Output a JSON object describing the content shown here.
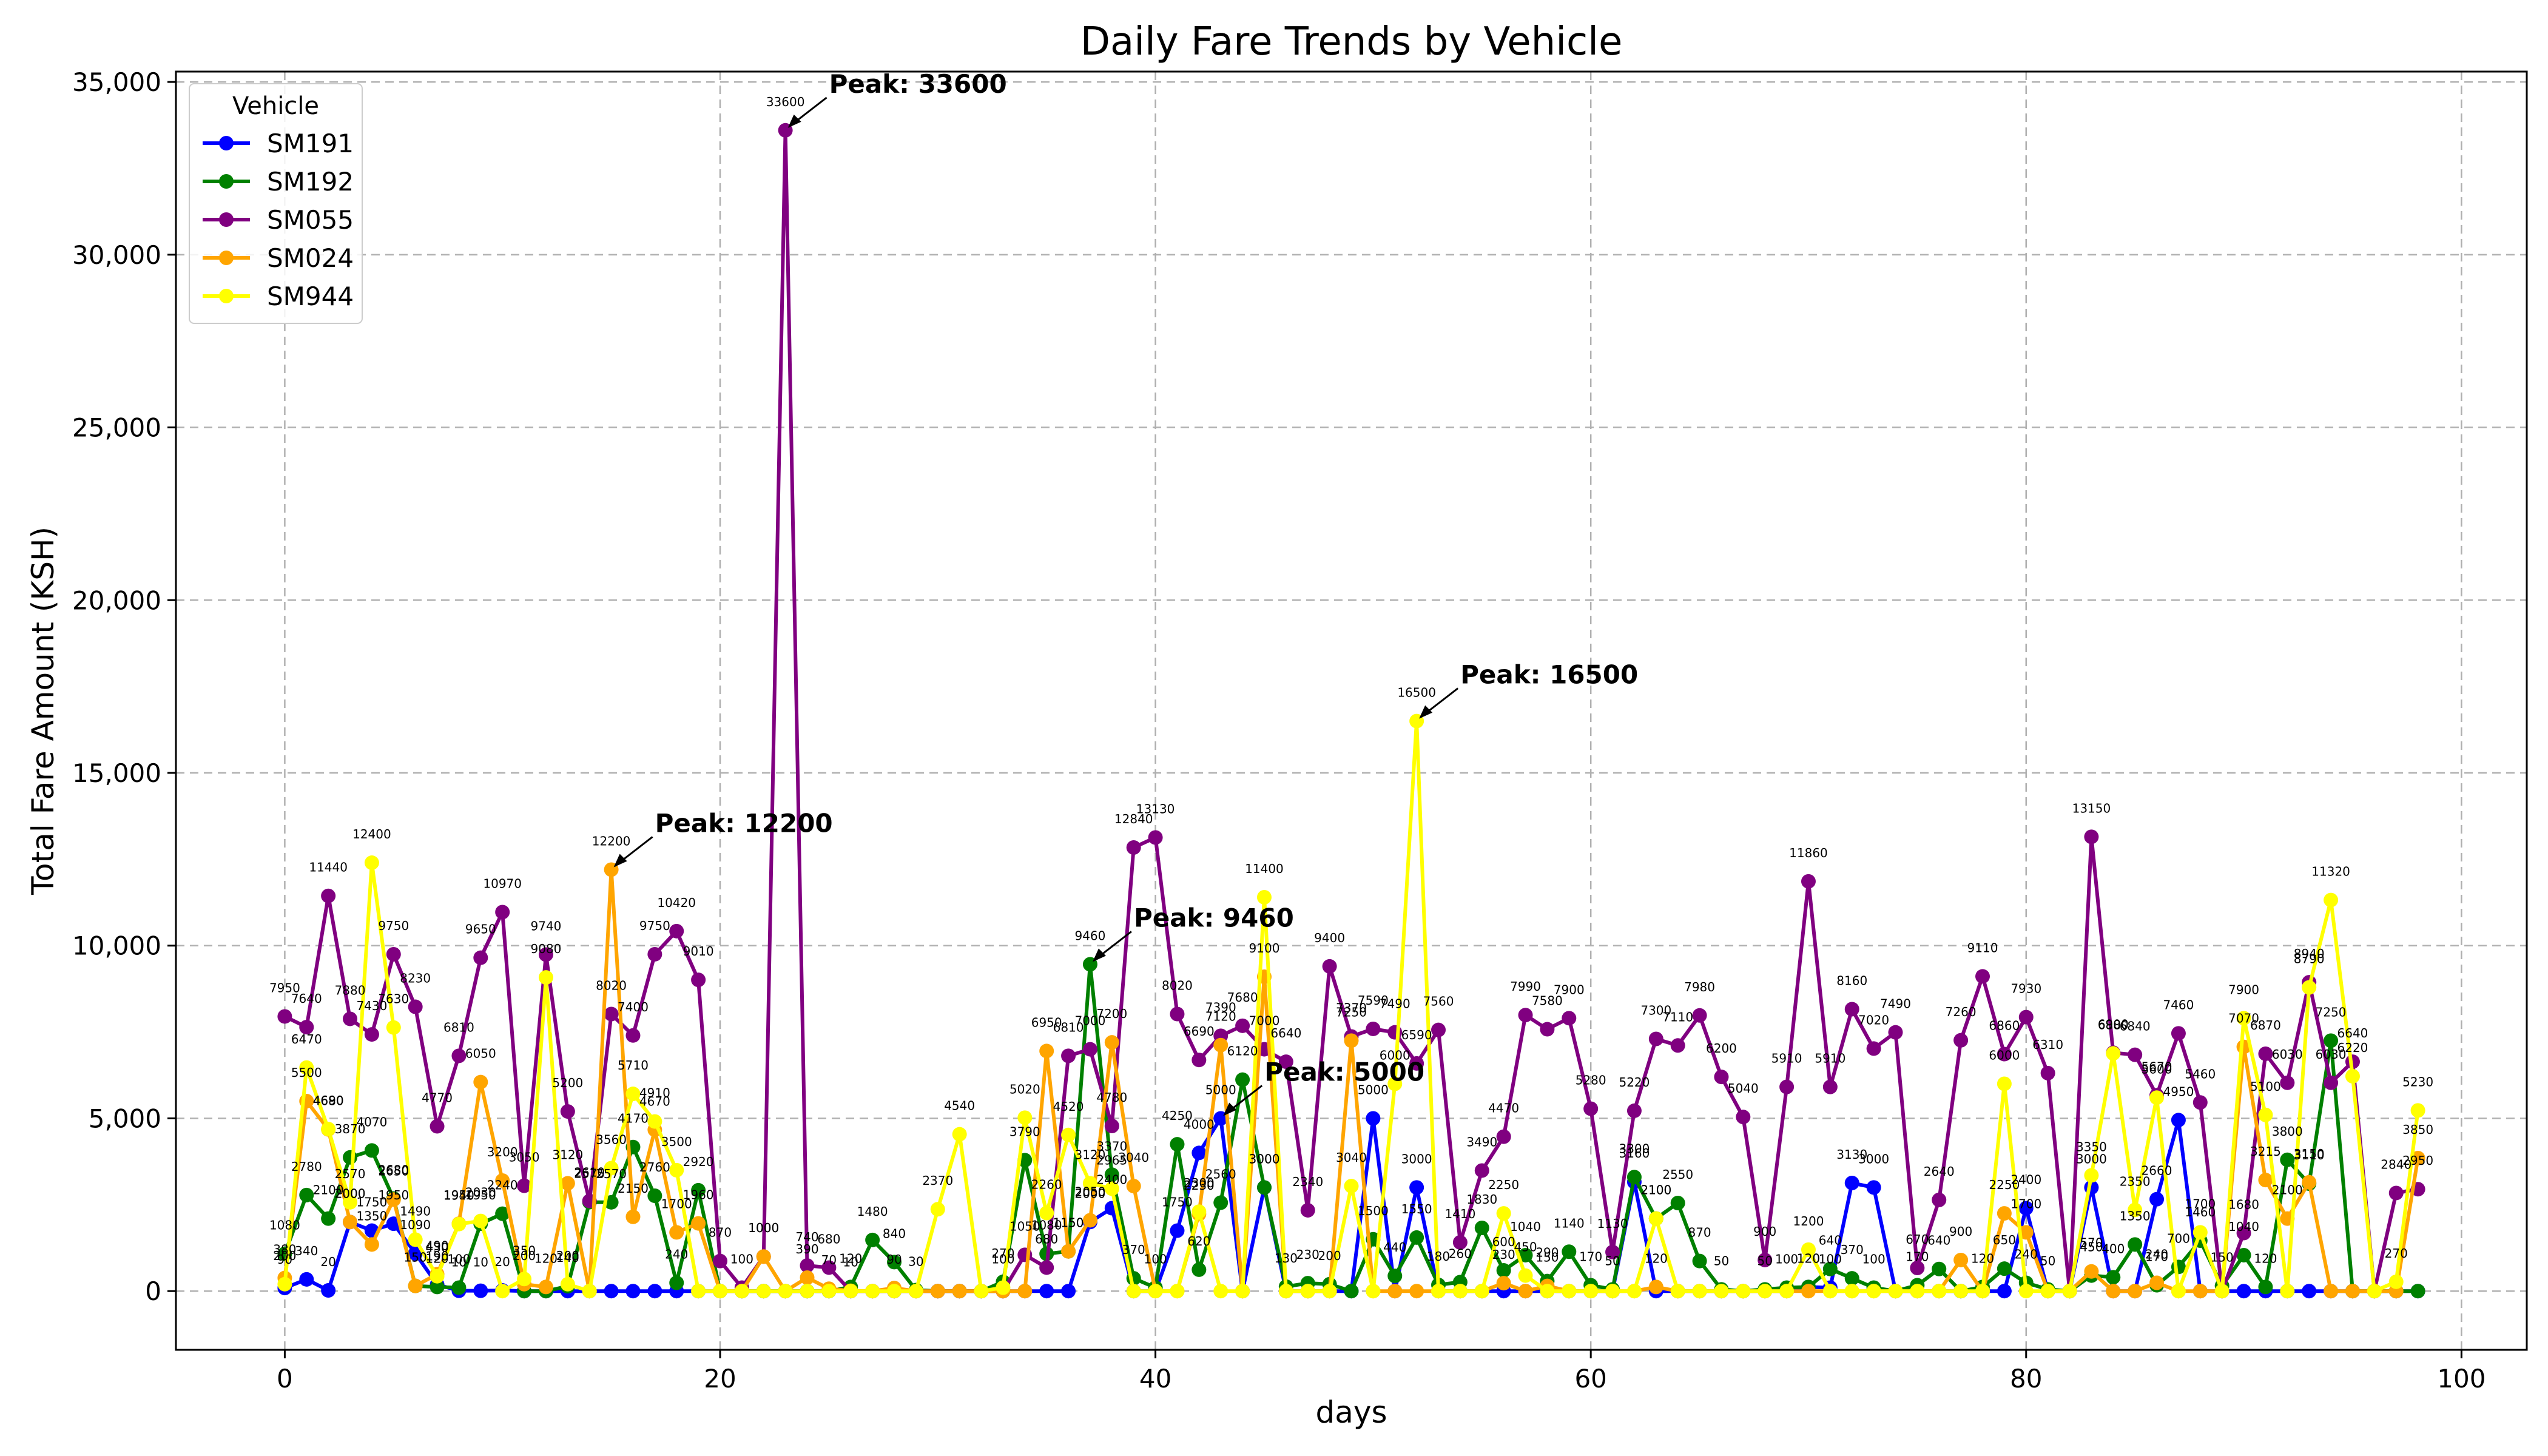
{
  "chart_data": {
    "type": "line",
    "title": "Daily Fare Trends by Vehicle",
    "xlabel": "days",
    "ylabel": "Total Fare Amount (KSH)",
    "xlim": [
      -5,
      103
    ],
    "ylim": [
      -1700,
      35300
    ],
    "x_ticks": [
      0,
      20,
      40,
      60,
      80,
      100
    ],
    "x_tick_labels": [
      "0",
      "20",
      "40",
      "60",
      "80",
      "100"
    ],
    "y_ticks": [
      0,
      5000,
      10000,
      15000,
      20000,
      25000,
      30000,
      35000
    ],
    "y_tick_labels": [
      "0",
      "5,000",
      "10,000",
      "15,000",
      "20,000",
      "25,000",
      "30,000",
      "35,000"
    ],
    "grid": true,
    "legend": {
      "title": "Vehicle",
      "position": "top-left"
    },
    "series": [
      {
        "name": "SM191",
        "color": "#0000ff",
        "x": [
          0,
          1,
          2,
          3,
          4,
          5,
          6,
          7,
          8,
          9,
          10,
          11,
          12,
          13,
          14,
          15,
          16,
          17,
          18,
          19,
          20,
          21,
          22,
          23,
          24,
          25,
          26,
          27,
          28,
          29,
          30,
          31,
          32,
          33,
          34,
          35,
          36,
          37,
          38,
          39,
          40,
          41,
          42,
          43,
          44,
          45,
          46,
          47,
          48,
          49,
          50,
          51,
          52,
          53,
          54,
          55,
          56,
          57,
          58,
          59,
          60,
          61,
          62,
          63,
          64,
          65,
          66,
          67,
          68,
          69,
          70,
          71,
          72,
          73,
          74,
          75,
          76,
          77,
          78,
          79,
          80,
          81,
          82,
          83,
          84,
          85,
          86,
          87,
          88,
          89,
          90,
          91,
          92,
          93,
          94,
          95,
          96,
          97,
          98
        ],
        "y": [
          90,
          340,
          20,
          2000,
          1750,
          1950,
          1090,
          190,
          10,
          10,
          20,
          0,
          0,
          0,
          0,
          0,
          0,
          0,
          0,
          0,
          0,
          0,
          0,
          0,
          0,
          0,
          0,
          0,
          0,
          0,
          0,
          0,
          0,
          0,
          0,
          0,
          0,
          2000,
          2400,
          0,
          0,
          1750,
          4000,
          5000,
          0,
          3000,
          0,
          0,
          0,
          0,
          5000,
          0,
          3000,
          0,
          0,
          0,
          0,
          0,
          0,
          0,
          0,
          0,
          3160,
          0,
          0,
          0,
          0,
          0,
          0,
          0,
          120,
          100,
          3130,
          3000,
          0,
          0,
          0,
          0,
          0,
          0,
          2400,
          0,
          0,
          3000,
          0,
          0,
          2660,
          4950,
          0,
          0,
          0,
          0,
          0,
          0,
          0,
          0,
          0,
          0,
          0
        ]
      },
      {
        "name": "SM192",
        "color": "#008000",
        "x": [
          0,
          1,
          2,
          3,
          4,
          5,
          6,
          7,
          8,
          9,
          10,
          11,
          12,
          13,
          14,
          15,
          16,
          17,
          18,
          19,
          20,
          21,
          22,
          23,
          24,
          25,
          26,
          27,
          28,
          29,
          30,
          31,
          32,
          33,
          34,
          35,
          36,
          37,
          38,
          39,
          40,
          41,
          42,
          43,
          44,
          45,
          46,
          47,
          48,
          49,
          50,
          51,
          52,
          53,
          54,
          55,
          56,
          57,
          58,
          59,
          60,
          61,
          62,
          63,
          64,
          65,
          66,
          67,
          68,
          69,
          70,
          71,
          72,
          73,
          74,
          75,
          76,
          77,
          78,
          79,
          80,
          81,
          82,
          83,
          84,
          85,
          86,
          87,
          88,
          89,
          90,
          91,
          92,
          93,
          94,
          95,
          96,
          97,
          98
        ],
        "y": [
          1080,
          2780,
          2100,
          3870,
          4070,
          2680,
          150,
          120,
          100,
          1950,
          2240,
          0,
          0,
          140,
          2575,
          2570,
          4170,
          2760,
          240,
          2920,
          0,
          0,
          0,
          0,
          0,
          0,
          120,
          1480,
          840,
          30,
          0,
          0,
          0,
          270,
          3790,
          1080,
          1150,
          9460,
          3370,
          370,
          100,
          4250,
          620,
          2560,
          6120,
          3000,
          130,
          230,
          200,
          0,
          1500,
          440,
          1550,
          180,
          260,
          1830,
          600,
          1040,
          290,
          1140,
          170,
          50,
          3300,
          2100,
          2550,
          870,
          50,
          0,
          50,
          100,
          120,
          640,
          370,
          100,
          0,
          170,
          640,
          0,
          120,
          650,
          240,
          50,
          0,
          450,
          400,
          1350,
          170,
          700,
          1460,
          150,
          1040,
          120,
          3800,
          3110,
          7250,
          0,
          0,
          0,
          0
        ]
      },
      {
        "name": "SM055",
        "color": "#800080",
        "x": [
          0,
          1,
          2,
          3,
          4,
          5,
          6,
          7,
          8,
          9,
          10,
          11,
          12,
          13,
          14,
          15,
          16,
          17,
          18,
          19,
          20,
          21,
          22,
          23,
          24,
          25,
          26,
          27,
          28,
          29,
          30,
          31,
          32,
          33,
          34,
          35,
          36,
          37,
          38,
          39,
          40,
          41,
          42,
          43,
          44,
          45,
          46,
          47,
          48,
          49,
          50,
          51,
          52,
          53,
          54,
          55,
          56,
          57,
          58,
          59,
          60,
          61,
          62,
          63,
          64,
          65,
          66,
          67,
          68,
          69,
          70,
          71,
          72,
          73,
          74,
          75,
          76,
          77,
          78,
          79,
          80,
          81,
          82,
          83,
          84,
          85,
          86,
          87,
          88,
          89,
          90,
          91,
          92,
          93,
          94,
          95,
          96,
          97,
          98
        ],
        "y": [
          7950,
          7640,
          11440,
          7880,
          7430,
          9750,
          8230,
          4770,
          6810,
          9650,
          10970,
          3050,
          9740,
          5200,
          2610,
          8020,
          7400,
          9750,
          10420,
          9010,
          870,
          100,
          1000,
          33600,
          740,
          680,
          0,
          0,
          0,
          0,
          0,
          0,
          0,
          0,
          1050,
          680,
          6810,
          7000,
          4780,
          12840,
          13130,
          8020,
          6690,
          7390,
          7680,
          7000,
          6640,
          2340,
          9400,
          7370,
          7590,
          7490,
          6590,
          7560,
          1410,
          3490,
          4470,
          7990,
          7580,
          7900,
          5280,
          1130,
          5220,
          7300,
          7110,
          7980,
          6200,
          5040,
          900,
          5910,
          11860,
          5910,
          8160,
          7020,
          7490,
          670,
          2640,
          7260,
          9110,
          6860,
          7930,
          6310,
          0,
          13150,
          6900,
          6840,
          5670,
          7460,
          5460,
          0,
          1680,
          6870,
          6030,
          8940,
          6030,
          6640,
          0,
          2840,
          2950
        ]
      },
      {
        "name": "SM024",
        "color": "#ffa500",
        "x": [
          0,
          1,
          2,
          3,
          4,
          5,
          6,
          7,
          8,
          9,
          10,
          11,
          12,
          13,
          14,
          15,
          16,
          17,
          18,
          19,
          20,
          21,
          22,
          23,
          24,
          25,
          26,
          27,
          28,
          29,
          30,
          31,
          32,
          33,
          34,
          35,
          36,
          37,
          38,
          39,
          40,
          41,
          42,
          43,
          44,
          45,
          46,
          47,
          48,
          49,
          50,
          51,
          52,
          53,
          54,
          55,
          56,
          57,
          58,
          59,
          60,
          61,
          62,
          63,
          64,
          65,
          66,
          67,
          68,
          69,
          70,
          71,
          72,
          73,
          74,
          75,
          76,
          77,
          78,
          79,
          80,
          81,
          82,
          83,
          84,
          85,
          86,
          87,
          88,
          89,
          90,
          91,
          92,
          93,
          94,
          95,
          96,
          97,
          98
        ],
        "y": [
          380,
          5500,
          4680,
          2000,
          1350,
          2650,
          150,
          490,
          1950,
          6050,
          3200,
          200,
          120,
          3120,
          0,
          12200,
          2150,
          4670,
          1700,
          1960,
          0,
          0,
          1000,
          0,
          390,
          70,
          10,
          0,
          90,
          0,
          0,
          0,
          0,
          0,
          0,
          6950,
          1150,
          2050,
          7200,
          3040,
          0,
          0,
          2230,
          7120,
          0,
          9100,
          0,
          0,
          0,
          7250,
          0,
          0,
          0,
          0,
          0,
          0,
          230,
          0,
          150,
          0,
          0,
          0,
          0,
          120,
          0,
          0,
          0,
          0,
          0,
          0,
          0,
          0,
          0,
          0,
          0,
          0,
          0,
          900,
          0,
          2250,
          1700,
          0,
          0,
          570,
          0,
          0,
          240,
          0,
          0,
          0,
          7070,
          3215,
          2100,
          3150,
          0,
          0,
          0,
          0,
          3850
        ]
      },
      {
        "name": "SM944",
        "color": "#ffff00",
        "x": [
          0,
          1,
          2,
          3,
          4,
          5,
          6,
          7,
          8,
          9,
          10,
          11,
          12,
          13,
          14,
          15,
          16,
          17,
          18,
          19,
          20,
          21,
          22,
          23,
          24,
          25,
          26,
          27,
          28,
          29,
          30,
          31,
          32,
          33,
          34,
          35,
          36,
          37,
          38,
          39,
          40,
          41,
          42,
          43,
          44,
          45,
          46,
          47,
          48,
          49,
          50,
          51,
          52,
          53,
          54,
          55,
          56,
          57,
          58,
          59,
          60,
          61,
          62,
          63,
          64,
          65,
          66,
          67,
          68,
          69,
          70,
          71,
          72,
          73,
          74,
          75,
          76,
          77,
          78,
          79,
          80,
          81,
          82,
          83,
          84,
          85,
          86,
          87,
          88,
          89,
          90,
          91,
          92,
          93,
          94,
          95,
          96,
          97,
          98
        ],
        "y": [
          200,
          6470,
          4690,
          2570,
          12400,
          7630,
          1490,
          430,
          1940,
          2030,
          0,
          350,
          9080,
          200,
          0,
          3560,
          5710,
          4910,
          3500,
          0,
          0,
          0,
          0,
          0,
          0,
          0,
          0,
          0,
          0,
          0,
          2370,
          4540,
          0,
          100,
          5020,
          2260,
          4520,
          3120,
          2965,
          0,
          0,
          0,
          2300,
          0,
          0,
          11400,
          0,
          0,
          0,
          3040,
          0,
          6000,
          16500,
          0,
          0,
          0,
          2250,
          450,
          0,
          0,
          0,
          0,
          0,
          2100,
          0,
          0,
          0,
          0,
          0,
          0,
          1200,
          0,
          0,
          0,
          0,
          0,
          0,
          0,
          0,
          6000,
          0,
          0,
          0,
          3350,
          6880,
          2350,
          5600,
          0,
          1700,
          0,
          7900,
          5100,
          0,
          8790,
          11320,
          6220,
          0,
          270,
          5230
        ]
      }
    ],
    "annotations": [
      {
        "text": "Peak: 33600",
        "x": 23,
        "y": 33600
      },
      {
        "text": "Peak: 12200",
        "x": 15,
        "y": 12200
      },
      {
        "text": "Peak: 9460",
        "x": 37,
        "y": 9460
      },
      {
        "text": "Peak: 5000",
        "x": 43,
        "y": 5000
      },
      {
        "text": "Peak: 16500",
        "x": 52,
        "y": 16500
      }
    ]
  }
}
